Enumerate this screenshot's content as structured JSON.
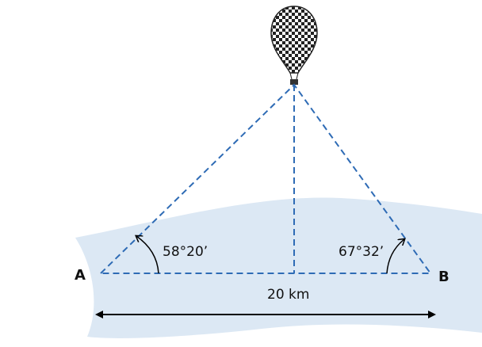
{
  "points": {
    "a": "A",
    "b": "B"
  },
  "angles": {
    "a": "58°20’",
    "b": "67°32’"
  },
  "distance": "20 km"
}
